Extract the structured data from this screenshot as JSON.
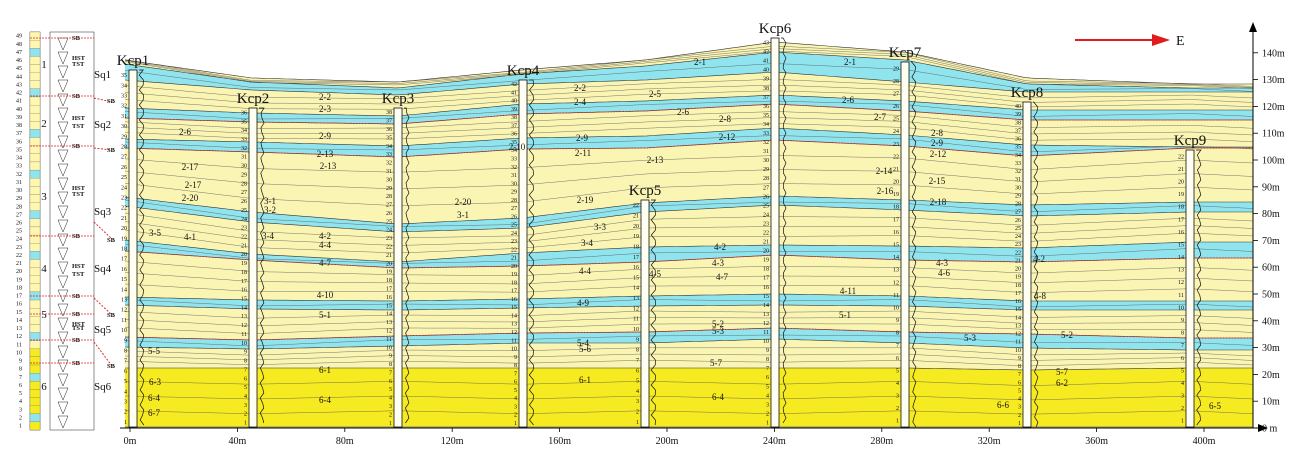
{
  "colors": {
    "sand": "#fbf5b4",
    "blue": "#8fe4ee",
    "yellow": "#f6ea20",
    "contact": "#e21c1c",
    "arrow": "#e21c1c"
  },
  "direction_label": "E",
  "x_axis": {
    "ticks": [
      "0m",
      "40m",
      "80m",
      "120m",
      "160m",
      "200m",
      "240m",
      "280m",
      "320m",
      "360m",
      "400m"
    ]
  },
  "y_axis": {
    "ticks": [
      "0 m",
      "10m",
      "20m",
      "30m",
      "40m",
      "50m",
      "60m",
      "70m",
      "80m",
      "90m",
      "100m",
      "110m",
      "120m",
      "130m",
      "140m"
    ]
  },
  "wells": [
    {
      "name": "Kcp1",
      "top_bed": 35
    },
    {
      "name": "Kcp2",
      "top_bed": 36
    },
    {
      "name": "Kcp3",
      "top_bed": 38
    },
    {
      "name": "Kcp4",
      "top_bed": 42
    },
    {
      "name": "Kcp5",
      "top_bed": 22
    },
    {
      "name": "Kcp6",
      "top_bed": 43
    },
    {
      "name": "Kcp7",
      "top_bed": 29
    },
    {
      "name": "Kcp8",
      "top_bed": 40
    },
    {
      "name": "Kcp9",
      "top_bed": 22
    }
  ],
  "column": {
    "bed_numbers": [
      "49",
      "48",
      "47",
      "46",
      "45",
      "44",
      "43",
      "42",
      "41",
      "40",
      "39",
      "38",
      "37",
      "36",
      "35",
      "34",
      "33",
      "32",
      "31",
      "30",
      "29",
      "28",
      "27",
      "26",
      "25",
      "24",
      "23",
      "22",
      "21",
      "20",
      "19",
      "18",
      "17",
      "16",
      "15",
      "14",
      "13",
      "12",
      "11",
      "10",
      "9",
      "8",
      "7",
      "6",
      "5",
      "4",
      "3",
      "2",
      "1"
    ],
    "sequence_numbers": [
      "1",
      "2",
      "3",
      "4",
      "5",
      "6"
    ],
    "system_tracts": [
      "SB",
      "HST",
      "TST",
      "SB",
      "HST",
      "TST",
      "SB",
      "HST",
      "TST",
      "SB",
      "HST",
      "TST",
      "SB",
      "SB",
      "HST",
      "TST",
      "SB",
      "SB"
    ]
  },
  "sequences": [
    "Sq1",
    "Sq2",
    "Sq3",
    "Sq4",
    "Sq5",
    "Sq6"
  ],
  "sb_label": "SB",
  "unit_labels": [
    "2-1",
    "2-1",
    "2-2",
    "2-2",
    "2-3",
    "2-4",
    "2-5",
    "2-6",
    "2-6",
    "2-6",
    "2-7",
    "2-8",
    "2-8",
    "2-9",
    "2-9",
    "2-9",
    "2-10",
    "2-11",
    "2-12",
    "2-12",
    "2-13",
    "2-13",
    "2-13",
    "2-14",
    "2-15",
    "2-16",
    "2-17",
    "2-17",
    "2-18",
    "2-19",
    "2-20",
    "2-20",
    "3-1",
    "3-1",
    "3-2",
    "3-3",
    "3-4",
    "3-4",
    "3-5",
    "4-1",
    "4-2",
    "4-2",
    "4-2",
    "4-3",
    "4-3",
    "4-4",
    "4-4",
    "4-5",
    "4-6",
    "4-7",
    "4-7",
    "4-8",
    "4-9",
    "4-10",
    "4-11",
    "5-1",
    "5-1",
    "5-2",
    "5-2",
    "5-3",
    "5-3",
    "5-4",
    "5-5",
    "5-6",
    "5-7",
    "5-7",
    "6-1",
    "6-1",
    "6-2",
    "6-3",
    "6-4",
    "6-4",
    "6-4",
    "6-5",
    "6-6",
    "6-7"
  ]
}
